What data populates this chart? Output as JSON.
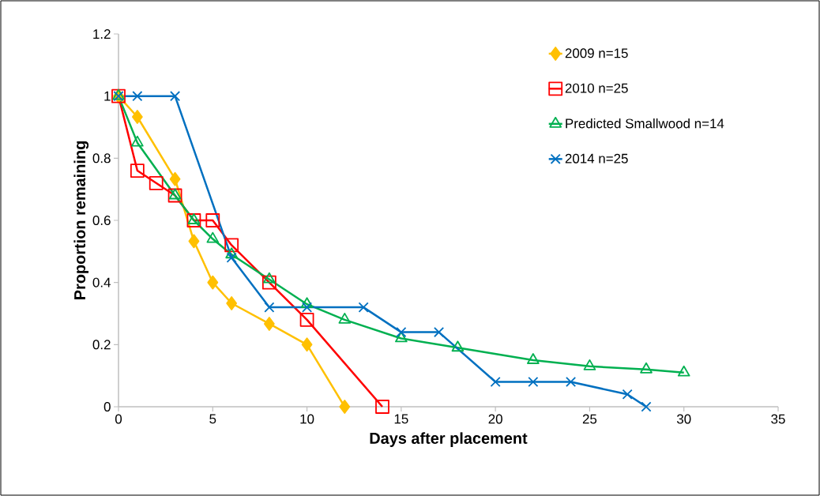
{
  "chart_data": {
    "type": "line",
    "xlabel": "Days after placement",
    "ylabel": "Proportion remaining",
    "xlim": [
      0,
      35
    ],
    "xticks": [
      0,
      5,
      10,
      15,
      20,
      25,
      30,
      35
    ],
    "ylim": [
      0,
      1.2
    ],
    "yticks": [
      0,
      0.2,
      0.4,
      0.6,
      0.8,
      1,
      1.2
    ],
    "grid": false,
    "legend": "top right",
    "line_style": "solid",
    "series": [
      {
        "name": "2009 n=15",
        "color": "#ffc000",
        "marker": "diamond",
        "x": [
          0,
          1,
          3,
          4,
          5,
          6,
          8,
          10,
          12
        ],
        "values": [
          1,
          0.933,
          0.733,
          0.533,
          0.4,
          0.333,
          0.267,
          0.2,
          0
        ]
      },
      {
        "name": "2010 n=25",
        "color": "#ff0000",
        "marker": "square",
        "x": [
          0,
          1,
          2,
          3,
          4,
          5,
          6,
          8,
          10,
          14
        ],
        "values": [
          1,
          0.76,
          0.72,
          0.68,
          0.6,
          0.6,
          0.52,
          0.4,
          0.28,
          0
        ]
      },
      {
        "name": "Predicted Smallwood n=14",
        "color": "#00b050",
        "marker": "triangle",
        "x": [
          0,
          1,
          3,
          4,
          5,
          6,
          8,
          10,
          12,
          15,
          18,
          22,
          25,
          28,
          30
        ],
        "values": [
          1,
          0.85,
          0.68,
          0.6,
          0.54,
          0.49,
          0.41,
          0.33,
          0.28,
          0.22,
          0.19,
          0.15,
          0.13,
          0.12,
          0.11
        ]
      },
      {
        "name": "2014 n=25",
        "color": "#0070c0",
        "marker": "cross",
        "x": [
          0,
          1,
          3,
          6,
          8,
          10,
          13,
          15,
          17,
          20,
          22,
          24,
          27,
          28
        ],
        "values": [
          1,
          1,
          1,
          0.48,
          0.32,
          0.32,
          0.32,
          0.24,
          0.24,
          0.08,
          0.08,
          0.08,
          0.04,
          0
        ]
      }
    ]
  }
}
